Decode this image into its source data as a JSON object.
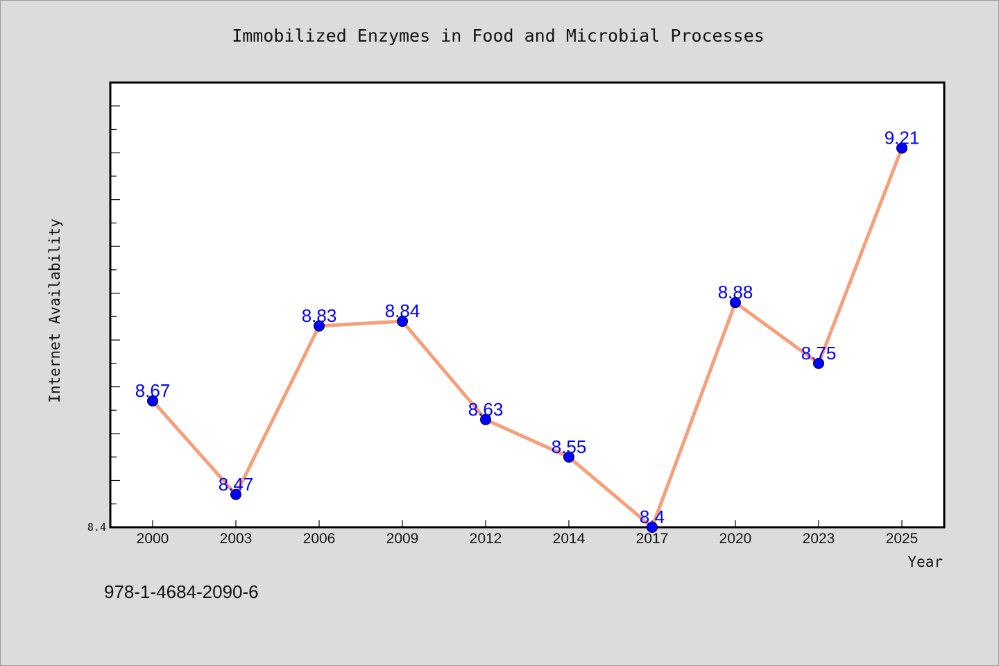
{
  "footnote": "978-1-4684-2090-6",
  "colors": {
    "background": "#dcdcdc",
    "plot_background": "#ffffff",
    "line": "#f5a07a",
    "marker": "#0000ff",
    "data_label": "#0000ff"
  },
  "chart_data": {
    "type": "line",
    "title": "Immobilized Enzymes in Food and Microbial Processes",
    "xlabel": "Year",
    "ylabel": "Internet Availability",
    "categories": [
      "2000",
      "2003",
      "2006",
      "2009",
      "2012",
      "2014",
      "2017",
      "2020",
      "2023",
      "2025"
    ],
    "series": [
      {
        "values": [
          8.67,
          8.47,
          8.83,
          8.84,
          8.63,
          8.55,
          8.4,
          8.88,
          8.75,
          9.21
        ]
      }
    ],
    "data_labels": [
      "8.67",
      "8.47",
      "8.83",
      "8.84",
      "8.63",
      "8.55",
      "8.4",
      "8.88",
      "8.75",
      "9.21"
    ],
    "yticks": [
      "8.4"
    ],
    "ylim": [
      8.4,
      9.35
    ],
    "grid": false,
    "legend": "none"
  }
}
